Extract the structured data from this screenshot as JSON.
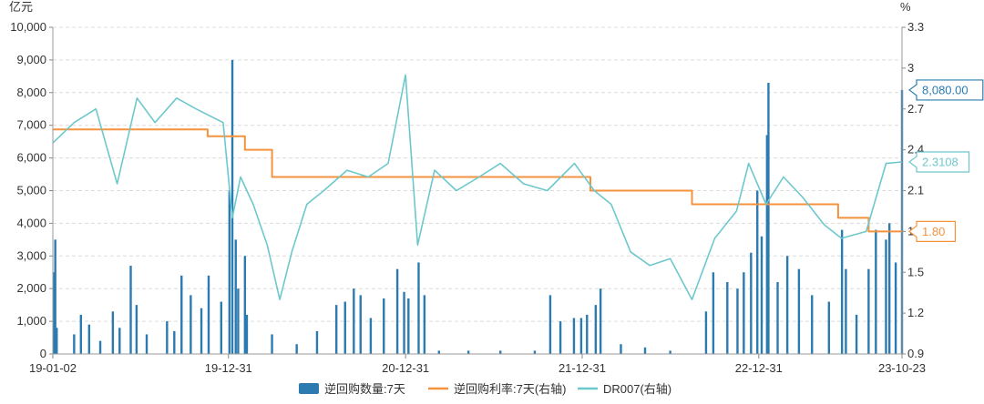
{
  "chart_data": {
    "type": "bar+line",
    "left_axis": {
      "unit": "亿元",
      "ticks": [
        0,
        1000,
        2000,
        3000,
        4000,
        5000,
        6000,
        7000,
        8000,
        9000,
        10000
      ],
      "tick_labels": [
        "0",
        "1,000",
        "2,000",
        "3,000",
        "4,000",
        "5,000",
        "6,000",
        "7,000",
        "8,000",
        "9,000",
        "10,000"
      ],
      "ylim": [
        0,
        10000
      ]
    },
    "right_axis": {
      "unit": "%",
      "ticks": [
        0.9,
        1.2,
        1.5,
        1.8,
        2.1,
        2.4,
        2.7,
        3,
        3.3
      ],
      "tick_labels": [
        "0.9",
        "1.2",
        "1.5",
        "1.8",
        "2.1",
        "2.4",
        "2.7",
        "3",
        "3.3"
      ],
      "ylim": [
        0.9,
        3.3
      ]
    },
    "x_axis": {
      "range": [
        "2019-01-02",
        "2023-10-23"
      ],
      "ticks": [
        "2019-01-02",
        "2019-12-31",
        "2020-12-31",
        "2021-12-31",
        "2022-12-31",
        "2023-10-23"
      ],
      "tick_labels": [
        "19-01-02",
        "19-12-31",
        "20-12-31",
        "21-12-31",
        "22-12-31",
        "23-10-23"
      ]
    },
    "grid": "horizontal dashed",
    "legend_position": "bottom",
    "series": [
      {
        "name": "逆回购数量:7天",
        "kind": "bar",
        "axis": "left",
        "color": "#2b7bb0",
        "points": [
          [
            "2019-01-04",
            2500
          ],
          [
            "2019-01-07",
            3500
          ],
          [
            "2019-01-10",
            800
          ],
          [
            "2019-02-15",
            600
          ],
          [
            "2019-03-01",
            1200
          ],
          [
            "2019-03-18",
            900
          ],
          [
            "2019-04-10",
            400
          ],
          [
            "2019-05-06",
            1300
          ],
          [
            "2019-05-20",
            800
          ],
          [
            "2019-06-12",
            2700
          ],
          [
            "2019-06-24",
            1500
          ],
          [
            "2019-07-15",
            600
          ],
          [
            "2019-08-26",
            1000
          ],
          [
            "2019-09-10",
            700
          ],
          [
            "2019-09-25",
            2400
          ],
          [
            "2019-10-14",
            1800
          ],
          [
            "2019-11-05",
            1400
          ],
          [
            "2019-11-20",
            2400
          ],
          [
            "2019-12-16",
            1600
          ],
          [
            "2020-01-02",
            5000
          ],
          [
            "2020-01-08",
            9000
          ],
          [
            "2020-01-15",
            3500
          ],
          [
            "2020-01-20",
            2000
          ],
          [
            "2020-02-03",
            3000
          ],
          [
            "2020-02-07",
            1200
          ],
          [
            "2020-03-30",
            600
          ],
          [
            "2020-05-20",
            300
          ],
          [
            "2020-07-01",
            700
          ],
          [
            "2020-08-10",
            1500
          ],
          [
            "2020-08-28",
            1600
          ],
          [
            "2020-09-15",
            2000
          ],
          [
            "2020-09-29",
            1800
          ],
          [
            "2020-10-20",
            1100
          ],
          [
            "2020-11-16",
            1700
          ],
          [
            "2020-12-14",
            2600
          ],
          [
            "2020-12-28",
            1900
          ],
          [
            "2021-01-06",
            1700
          ],
          [
            "2021-01-27",
            2800
          ],
          [
            "2021-02-08",
            1800
          ],
          [
            "2021-03-10",
            100
          ],
          [
            "2021-05-10",
            100
          ],
          [
            "2021-07-15",
            100
          ],
          [
            "2021-09-24",
            100
          ],
          [
            "2021-10-26",
            1800
          ],
          [
            "2021-11-16",
            1000
          ],
          [
            "2021-12-14",
            1100
          ],
          [
            "2021-12-29",
            1100
          ],
          [
            "2022-01-10",
            1200
          ],
          [
            "2022-01-28",
            1500
          ],
          [
            "2022-02-07",
            2000
          ],
          [
            "2022-03-21",
            300
          ],
          [
            "2022-05-10",
            200
          ],
          [
            "2022-07-01",
            100
          ],
          [
            "2022-09-13",
            1300
          ],
          [
            "2022-09-28",
            2500
          ],
          [
            "2022-10-27",
            2200
          ],
          [
            "2022-11-17",
            2000
          ],
          [
            "2022-11-30",
            2500
          ],
          [
            "2022-12-15",
            3100
          ],
          [
            "2022-12-28",
            5000
          ],
          [
            "2023-01-06",
            3600
          ],
          [
            "2023-01-17",
            6700
          ],
          [
            "2023-01-20",
            8300
          ],
          [
            "2023-02-08",
            2200
          ],
          [
            "2023-02-28",
            3000
          ],
          [
            "2023-03-24",
            2600
          ],
          [
            "2023-04-20",
            1800
          ],
          [
            "2023-05-25",
            1600
          ],
          [
            "2023-06-21",
            3800
          ],
          [
            "2023-06-29",
            2600
          ],
          [
            "2023-07-21",
            1200
          ],
          [
            "2023-08-15",
            2600
          ],
          [
            "2023-08-30",
            3800
          ],
          [
            "2023-09-20",
            3500
          ],
          [
            "2023-09-27",
            4000
          ],
          [
            "2023-10-10",
            2800
          ],
          [
            "2023-10-23",
            8080
          ]
        ]
      },
      {
        "name": "逆回购利率:7天(右轴)",
        "kind": "step-line",
        "axis": "right",
        "color": "#f5923e",
        "points": [
          [
            "2019-01-02",
            2.55
          ],
          [
            "2019-11-18",
            2.5
          ],
          [
            "2020-02-03",
            2.4
          ],
          [
            "2020-03-30",
            2.2
          ],
          [
            "2022-01-17",
            2.1
          ],
          [
            "2022-08-15",
            2.0
          ],
          [
            "2023-06-13",
            1.9
          ],
          [
            "2023-08-15",
            1.8
          ],
          [
            "2023-10-23",
            1.8
          ]
        ]
      },
      {
        "name": "DR007(右轴)",
        "kind": "line",
        "axis": "right",
        "color": "#6dc8cc",
        "points": [
          [
            "2019-01-02",
            2.45
          ],
          [
            "2019-02-15",
            2.6
          ],
          [
            "2019-04-01",
            2.7
          ],
          [
            "2019-05-15",
            2.15
          ],
          [
            "2019-06-25",
            2.78
          ],
          [
            "2019-08-01",
            2.6
          ],
          [
            "2019-09-15",
            2.78
          ],
          [
            "2019-10-25",
            2.7
          ],
          [
            "2019-12-20",
            2.6
          ],
          [
            "2020-01-08",
            1.9
          ],
          [
            "2020-01-25",
            2.2
          ],
          [
            "2020-02-20",
            2.0
          ],
          [
            "2020-03-20",
            1.7
          ],
          [
            "2020-04-15",
            1.3
          ],
          [
            "2020-05-10",
            1.65
          ],
          [
            "2020-06-10",
            2.0
          ],
          [
            "2020-07-15",
            2.1
          ],
          [
            "2020-09-01",
            2.25
          ],
          [
            "2020-10-15",
            2.2
          ],
          [
            "2020-11-25",
            2.3
          ],
          [
            "2020-12-31",
            2.95
          ],
          [
            "2021-01-25",
            1.7
          ],
          [
            "2021-03-01",
            2.25
          ],
          [
            "2021-04-15",
            2.1
          ],
          [
            "2021-06-01",
            2.2
          ],
          [
            "2021-07-15",
            2.3
          ],
          [
            "2021-09-01",
            2.15
          ],
          [
            "2021-10-20",
            2.1
          ],
          [
            "2021-12-15",
            2.3
          ],
          [
            "2022-01-25",
            2.1
          ],
          [
            "2022-03-01",
            2.0
          ],
          [
            "2022-04-10",
            1.65
          ],
          [
            "2022-05-20",
            1.55
          ],
          [
            "2022-07-01",
            1.6
          ],
          [
            "2022-08-15",
            1.3
          ],
          [
            "2022-10-01",
            1.75
          ],
          [
            "2022-11-15",
            1.95
          ],
          [
            "2022-12-10",
            2.3
          ],
          [
            "2023-01-15",
            2.0
          ],
          [
            "2023-02-20",
            2.2
          ],
          [
            "2023-04-01",
            2.05
          ],
          [
            "2023-05-15",
            1.85
          ],
          [
            "2023-06-20",
            1.75
          ],
          [
            "2023-08-10",
            1.8
          ],
          [
            "2023-09-20",
            2.3
          ],
          [
            "2023-10-23",
            2.3108
          ]
        ]
      }
    ],
    "callouts": [
      {
        "series": "逆回购数量:7天",
        "value": 8080,
        "label": "8,080.00"
      },
      {
        "series": "DR007(右轴)",
        "value": 2.3108,
        "label": "2.3108"
      },
      {
        "series": "逆回购利率:7天(右轴)",
        "value": 1.8,
        "label": "1.80"
      }
    ]
  }
}
